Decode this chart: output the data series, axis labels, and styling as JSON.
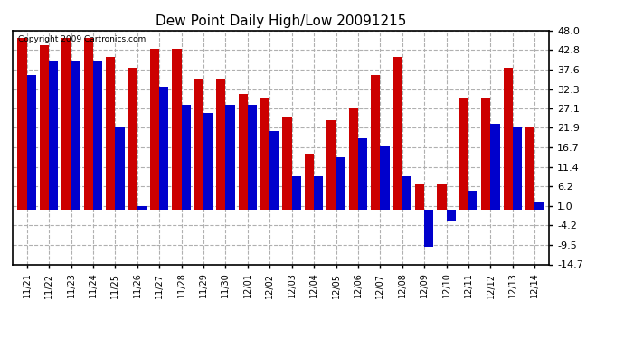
{
  "title": "Dew Point Daily High/Low 20091215",
  "copyright": "Copyright 2009 Cartronics.com",
  "dates": [
    "11/21",
    "11/22",
    "11/23",
    "11/24",
    "11/25",
    "11/26",
    "11/27",
    "11/28",
    "11/29",
    "11/30",
    "12/01",
    "12/02",
    "12/03",
    "12/04",
    "12/05",
    "12/06",
    "12/07",
    "12/08",
    "12/09",
    "12/10",
    "12/11",
    "12/12",
    "12/13",
    "12/14"
  ],
  "highs": [
    46,
    44,
    46,
    46,
    41,
    38,
    43,
    43,
    35,
    35,
    31,
    30,
    25,
    15,
    24,
    27,
    36,
    41,
    7,
    7,
    30,
    30,
    38,
    22
  ],
  "lows": [
    36,
    40,
    40,
    40,
    22,
    1,
    33,
    28,
    26,
    28,
    28,
    21,
    9,
    9,
    14,
    19,
    17,
    9,
    -10,
    -3,
    5,
    23,
    22,
    2
  ],
  "high_color": "#cc0000",
  "low_color": "#0000cc",
  "background_color": "#ffffff",
  "grid_color": "#b0b0b0",
  "yticks": [
    48.0,
    42.8,
    37.6,
    32.3,
    27.1,
    21.9,
    16.7,
    11.4,
    6.2,
    1.0,
    -4.2,
    -9.5,
    -14.7
  ],
  "ylim": [
    -14.7,
    48.0
  ],
  "bar_width": 0.42,
  "figsize": [
    6.9,
    3.75
  ],
  "dpi": 100
}
